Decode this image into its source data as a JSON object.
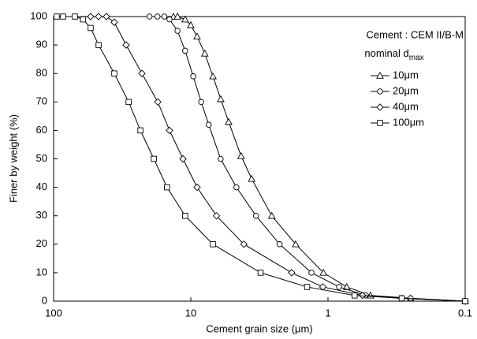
{
  "chart_data": {
    "type": "line",
    "x_label": "Cement grain size (μm)",
    "y_label": "Finer by weight (%)",
    "legend_title": "Cement : CEM II/B-M",
    "legend_subtitle": "nominal d",
    "legend_subtitle_sub": "max",
    "xlim": [
      100,
      0.1
    ],
    "xticks": [
      100,
      10,
      1,
      0.1
    ],
    "log_x": true,
    "ylim": [
      0,
      100
    ],
    "yticks": [
      0,
      10,
      20,
      30,
      40,
      50,
      60,
      70,
      80,
      90,
      100
    ],
    "series": [
      {
        "name": "10μm",
        "color": "#000000",
        "marker": "triangle",
        "x": [
          13.4,
          12.5,
          11.0,
          10,
          9.0,
          7.9,
          6.9,
          6.05,
          5.3,
          4.3,
          3.6,
          2.57,
          1.72,
          1.08,
          0.73,
          0.49,
          0.25,
          0.1
        ],
        "values": [
          100,
          100,
          99,
          97,
          93,
          87,
          79,
          71,
          63,
          51,
          43,
          30,
          20,
          10,
          5,
          2,
          1,
          0
        ]
      },
      {
        "name": "20μm",
        "color": "#000000",
        "marker": "circle",
        "x": [
          20,
          17.5,
          15.6,
          14.3,
          12.5,
          11.0,
          9.6,
          8.4,
          7.4,
          6.06,
          4.65,
          3.35,
          2.25,
          1.32,
          0.83,
          0.53,
          0.25,
          0.1
        ],
        "values": [
          100,
          100,
          100,
          99,
          95,
          88,
          79,
          70,
          62,
          50,
          40,
          30,
          20,
          10,
          5,
          2,
          1,
          0
        ]
      },
      {
        "name": "40μm",
        "color": "#000000",
        "marker": "diamond",
        "x": [
          53.7,
          47,
          41.2,
          36.1,
          29.6,
          22.7,
          17.4,
          14.3,
          11.4,
          9.0,
          6.5,
          4.1,
          1.84,
          1.09,
          0.56,
          0.29,
          0.1
        ],
        "values": [
          100,
          100,
          100,
          98,
          90,
          80,
          70,
          60,
          50,
          40,
          30,
          20,
          10,
          5,
          2,
          1,
          0
        ]
      },
      {
        "name": "100μm",
        "color": "#000000",
        "marker": "square",
        "x": [
          95,
          85.3,
          70,
          61,
          53.7,
          47,
          36.1,
          28.4,
          23.3,
          18.6,
          14.9,
          11.0,
          6.9,
          3.1,
          1.42,
          0.64,
          0.29,
          0.1
        ],
        "values": [
          100,
          100,
          100,
          99,
          96,
          90,
          80,
          70,
          60,
          50,
          40,
          30,
          20,
          10,
          5,
          2,
          1,
          0
        ]
      }
    ]
  }
}
